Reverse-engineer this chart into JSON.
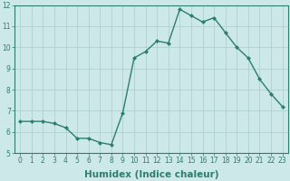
{
  "x": [
    0,
    1,
    2,
    3,
    4,
    5,
    6,
    7,
    8,
    9,
    10,
    11,
    12,
    13,
    14,
    15,
    16,
    17,
    18,
    19,
    20,
    21,
    22,
    23
  ],
  "y": [
    6.5,
    6.5,
    6.5,
    6.4,
    6.2,
    5.7,
    5.7,
    5.5,
    5.4,
    6.9,
    9.5,
    9.8,
    10.3,
    10.2,
    11.8,
    11.5,
    11.2,
    11.4,
    10.7,
    10.0,
    9.5,
    8.5,
    7.8,
    7.2
  ],
  "xlabel": "Humidex (Indice chaleur)",
  "ylim": [
    5,
    12
  ],
  "xlim_min": -0.5,
  "xlim_max": 23.5,
  "yticks": [
    5,
    6,
    7,
    8,
    9,
    10,
    11,
    12
  ],
  "xticks": [
    0,
    1,
    2,
    3,
    4,
    5,
    6,
    7,
    8,
    9,
    10,
    11,
    12,
    13,
    14,
    15,
    16,
    17,
    18,
    19,
    20,
    21,
    22,
    23
  ],
  "line_color": "#2e7d6e",
  "marker": "D",
  "marker_size": 2.0,
  "line_width": 1.0,
  "bg_color": "#cce8e8",
  "grid_color": "#b0d0d0",
  "tick_label_fontsize": 5.5,
  "xlabel_fontsize": 7.5,
  "tick_color": "#2e7d6e",
  "label_color": "#2e7d6e"
}
